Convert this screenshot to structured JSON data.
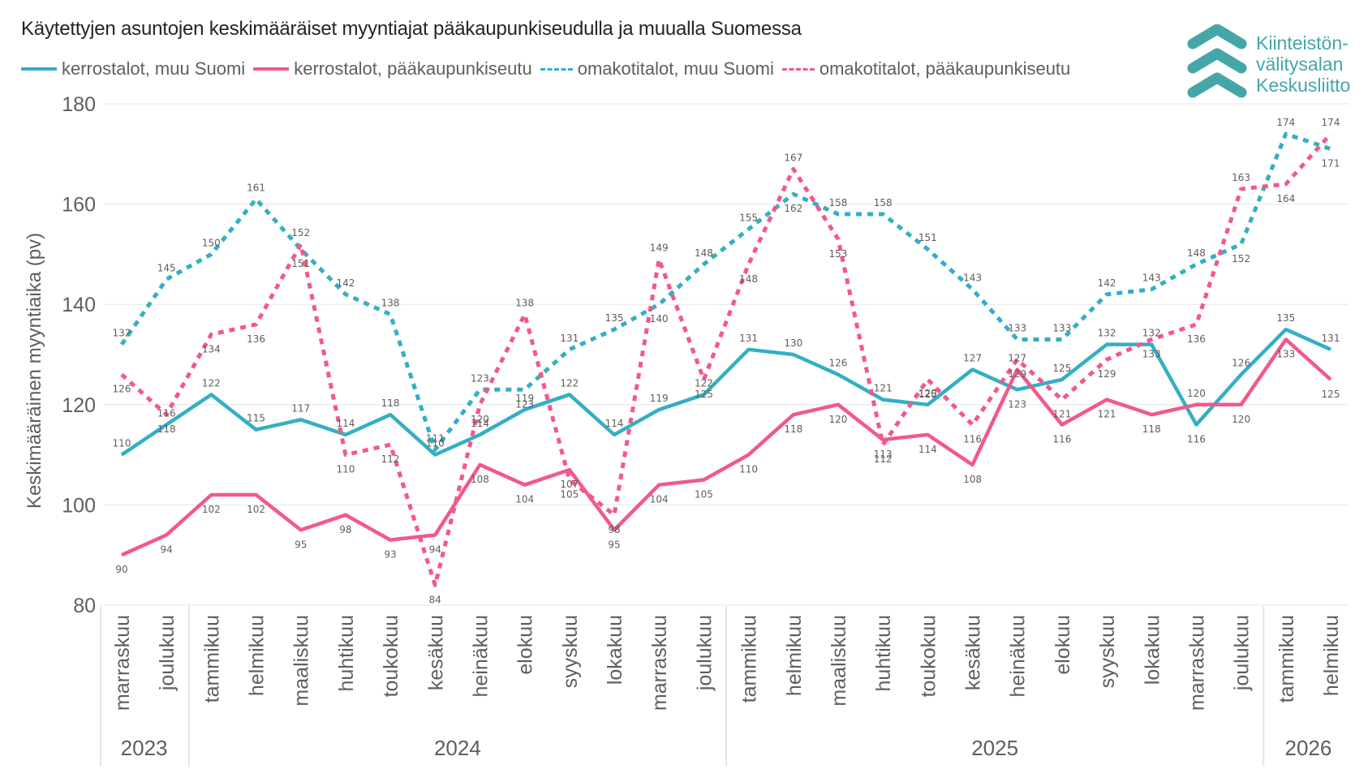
{
  "chart_data": {
    "type": "line",
    "title": "Käytettyjen asuntojen keskimääräiset myyntiajat pääkaupunkiseudulla ja muualla Suomessa",
    "xlabel": "",
    "ylabel": "Keskimääräinen myyntiaika (pv)",
    "ylim": [
      80,
      180
    ],
    "yticks": [
      80,
      100,
      120,
      140,
      160,
      180
    ],
    "grid": true,
    "legend_position": "top",
    "x": [
      "marraskuu",
      "joulukuu",
      "tammikuu",
      "helmikuu",
      "maaliskuu",
      "huhtikuu",
      "toukokuu",
      "kesäkuu",
      "heinäkuu",
      "elokuu",
      "syyskuu",
      "lokakuu",
      "marraskuu",
      "joulukuu",
      "tammikuu",
      "helmikuu",
      "maaliskuu",
      "huhtikuu",
      "toukokuu",
      "kesäkuu",
      "heinäkuu",
      "elokuu",
      "syyskuu",
      "lokakuu",
      "marraskuu",
      "joulukuu",
      "tammikuu",
      "helmikuu"
    ],
    "years": [
      {
        "label": "2023",
        "count": 2
      },
      {
        "label": "2024",
        "count": 12
      },
      {
        "label": "2025",
        "count": 12
      },
      {
        "label": "2026",
        "count": 2
      }
    ],
    "series": [
      {
        "name": "kerrostalot, muu Suomi",
        "color": "#33AFC4",
        "style": "solid",
        "values": [
          110,
          116,
          122,
          115,
          117,
          114,
          118,
          110,
          114,
          119,
          122,
          114,
          119,
          122,
          131,
          130,
          126,
          121,
          120,
          127,
          123,
          125,
          132,
          132,
          116,
          126,
          135,
          131
        ]
      },
      {
        "name": "kerrostalot, pääkaupunkiseutu",
        "color": "#F2588C",
        "style": "solid",
        "values": [
          90,
          94,
          102,
          102,
          95,
          98,
          93,
          94,
          108,
          104,
          107,
          95,
          104,
          105,
          110,
          118,
          120,
          113,
          114,
          108,
          127,
          116,
          121,
          118,
          120,
          120,
          133,
          125
        ]
      },
      {
        "name": "omakotitalot, muu Suomi",
        "color": "#33AFC4",
        "style": "dashed",
        "values": [
          132,
          145,
          150,
          161,
          151,
          142,
          138,
          111,
          123,
          123,
          131,
          135,
          140,
          148,
          155,
          162,
          158,
          158,
          151,
          143,
          133,
          133,
          142,
          143,
          148,
          152,
          174,
          171
        ]
      },
      {
        "name": "omakotitalot, pääkaupunkiseutu",
        "color": "#F2588C",
        "style": "dashed",
        "values": [
          126,
          118,
          134,
          136,
          152,
          110,
          112,
          84,
          120,
          138,
          105,
          98,
          149,
          125,
          148,
          167,
          153,
          112,
          125,
          116,
          129,
          121,
          129,
          133,
          136,
          163,
          164,
          174
        ]
      }
    ]
  },
  "logo": {
    "line1": "Kiinteistön-",
    "line2": "välitysalan",
    "line3": "Keskusliitto",
    "color": "#45A6A8"
  }
}
